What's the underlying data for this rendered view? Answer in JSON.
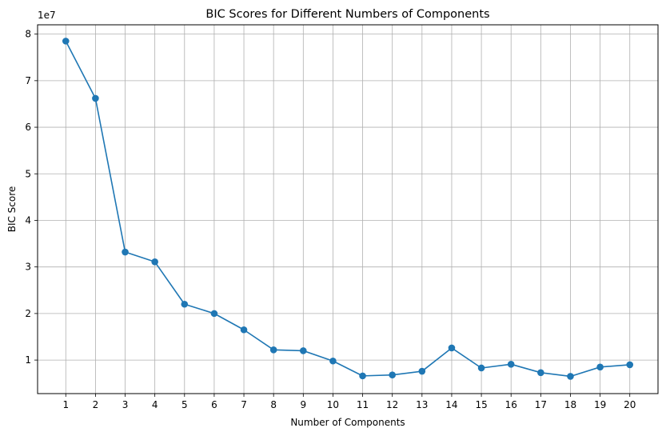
{
  "chart_data": {
    "type": "line",
    "title": "BIC Scores for Different Numbers of Components",
    "xlabel": "Number of Components",
    "ylabel": "BIC Score",
    "y_multiplier_label": "1e7",
    "x": [
      1,
      2,
      3,
      4,
      5,
      6,
      7,
      8,
      9,
      10,
      11,
      12,
      13,
      14,
      15,
      16,
      17,
      18,
      19,
      20
    ],
    "xticks": [
      "1",
      "2",
      "3",
      "4",
      "5",
      "6",
      "7",
      "8",
      "9",
      "10",
      "11",
      "12",
      "13",
      "14",
      "15",
      "16",
      "17",
      "18",
      "19",
      "20"
    ],
    "yticks": [
      1,
      2,
      3,
      4,
      5,
      6,
      7,
      8
    ],
    "ytick_labels": [
      "1",
      "2",
      "3",
      "4",
      "5",
      "6",
      "7",
      "8"
    ],
    "xlim": [
      0.05,
      20.95
    ],
    "ylim": [
      0.28,
      8.2
    ],
    "grid": true,
    "series": [
      {
        "name": "BIC",
        "color": "#1f77b4",
        "marker": "circle",
        "values": [
          7.85,
          6.62,
          3.32,
          3.11,
          2.2,
          2.0,
          1.65,
          1.22,
          1.2,
          0.98,
          0.66,
          0.68,
          0.76,
          1.26,
          0.83,
          0.91,
          0.73,
          0.65,
          0.85,
          0.9
        ]
      }
    ]
  }
}
